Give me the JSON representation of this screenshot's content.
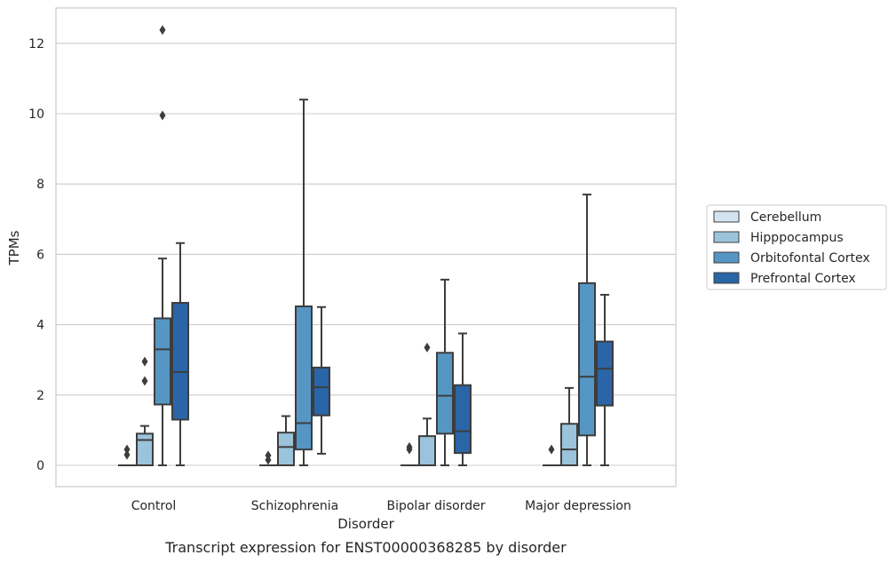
{
  "chart_data": {
    "type": "box",
    "xlabel": "Disorder",
    "ylabel": "TPMs",
    "caption": "Transcript expression for ENST00000368285 by disorder",
    "ylim": [
      -0.6,
      13
    ],
    "yticks": [
      "0",
      "2",
      "4",
      "6",
      "8",
      "10",
      "12"
    ],
    "grid": "horizontal",
    "legend_position": "right",
    "categories": [
      "Control",
      "Schizophrenia",
      "Bipolar disorder",
      "Major depression"
    ],
    "series": [
      {
        "name": "Cerebellum",
        "color": "#d4e3f0",
        "boxes": [
          {
            "whislo": 0,
            "q1": 0,
            "med": 0,
            "q3": 0,
            "whishi": 0,
            "fliers": [
              0.3,
              0.45
            ]
          },
          {
            "whislo": 0,
            "q1": 0,
            "med": 0,
            "q3": 0,
            "whishi": 0,
            "fliers": [
              0.15,
              0.28
            ]
          },
          {
            "whislo": 0,
            "q1": 0,
            "med": 0,
            "q3": 0,
            "whishi": 0,
            "fliers": [
              0.45,
              0.52
            ]
          },
          {
            "whislo": 0,
            "q1": 0,
            "med": 0,
            "q3": 0,
            "whishi": 0,
            "fliers": [
              0.45
            ]
          }
        ]
      },
      {
        "name": "Hipppocampus",
        "color": "#9cc3dc",
        "boxes": [
          {
            "whislo": 0,
            "q1": 0,
            "med": 0.72,
            "q3": 0.9,
            "whishi": 1.12,
            "fliers": [
              2.4,
              2.95
            ]
          },
          {
            "whislo": 0,
            "q1": 0,
            "med": 0.52,
            "q3": 0.93,
            "whishi": 1.4,
            "fliers": []
          },
          {
            "whislo": 0,
            "q1": 0,
            "med": 0,
            "q3": 0.83,
            "whishi": 1.33,
            "fliers": [
              3.35
            ]
          },
          {
            "whislo": 0,
            "q1": 0,
            "med": 0.45,
            "q3": 1.18,
            "whishi": 2.2,
            "fliers": []
          }
        ]
      },
      {
        "name": "Orbitofontal Cortex",
        "color": "#5596c4",
        "boxes": [
          {
            "whislo": 0,
            "q1": 1.73,
            "med": 3.3,
            "q3": 4.18,
            "whishi": 5.88,
            "fliers": [
              9.95,
              12.38
            ]
          },
          {
            "whislo": 0,
            "q1": 0.45,
            "med": 1.2,
            "q3": 4.52,
            "whishi": 10.4,
            "fliers": []
          },
          {
            "whislo": 0,
            "q1": 0.9,
            "med": 1.98,
            "q3": 3.2,
            "whishi": 5.28,
            "fliers": []
          },
          {
            "whislo": 0,
            "q1": 0.85,
            "med": 2.52,
            "q3": 5.18,
            "whishi": 7.7,
            "fliers": []
          }
        ]
      },
      {
        "name": "Prefrontal Cortex",
        "color": "#2a65a7",
        "boxes": [
          {
            "whislo": 0,
            "q1": 1.3,
            "med": 2.65,
            "q3": 4.62,
            "whishi": 6.32,
            "fliers": []
          },
          {
            "whislo": 0.33,
            "q1": 1.42,
            "med": 2.22,
            "q3": 2.78,
            "whishi": 4.5,
            "fliers": []
          },
          {
            "whislo": 0,
            "q1": 0.35,
            "med": 0.97,
            "q3": 2.28,
            "whishi": 3.75,
            "fliers": []
          },
          {
            "whislo": 0,
            "q1": 1.7,
            "med": 2.75,
            "q3": 3.52,
            "whishi": 4.85,
            "fliers": []
          }
        ]
      }
    ]
  }
}
